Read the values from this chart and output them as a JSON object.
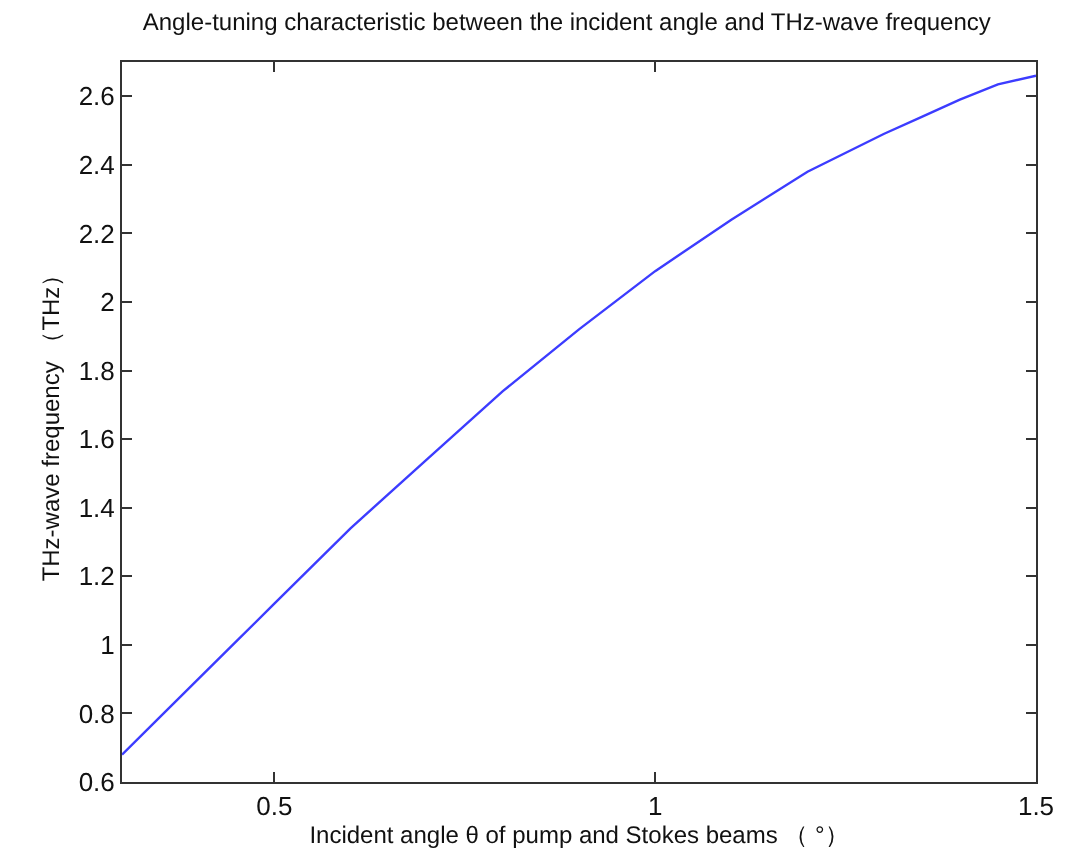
{
  "chart_data": {
    "type": "line",
    "title": "Angle-tuning characteristic between the incident angle and THz-wave frequency",
    "xlabel": "Incident angle θ of pump and Stokes beams （ °）",
    "ylabel": "THz-wave frequency （THz）",
    "x": [
      0.3,
      0.35,
      0.4,
      0.45,
      0.5,
      0.6,
      0.7,
      0.8,
      0.9,
      1.0,
      1.1,
      1.2,
      1.3,
      1.35,
      1.4,
      1.45,
      1.5
    ],
    "series": [
      {
        "color": "#3c3cff",
        "values": [
          0.68,
          0.79,
          0.9,
          1.01,
          1.12,
          1.34,
          1.54,
          1.74,
          1.92,
          2.09,
          2.24,
          2.38,
          2.49,
          2.54,
          2.59,
          2.635,
          2.66
        ]
      }
    ],
    "xlim": [
      0.3,
      1.5
    ],
    "xticks": [
      0.5,
      1,
      1.5
    ],
    "ylim": [
      0.6,
      2.7
    ],
    "yticks": [
      0.6,
      0.8,
      1,
      1.2,
      1.4,
      1.6,
      1.8,
      2,
      2.2,
      2.4,
      2.6
    ],
    "grid": false,
    "marker": "none",
    "line_style": "solid"
  }
}
